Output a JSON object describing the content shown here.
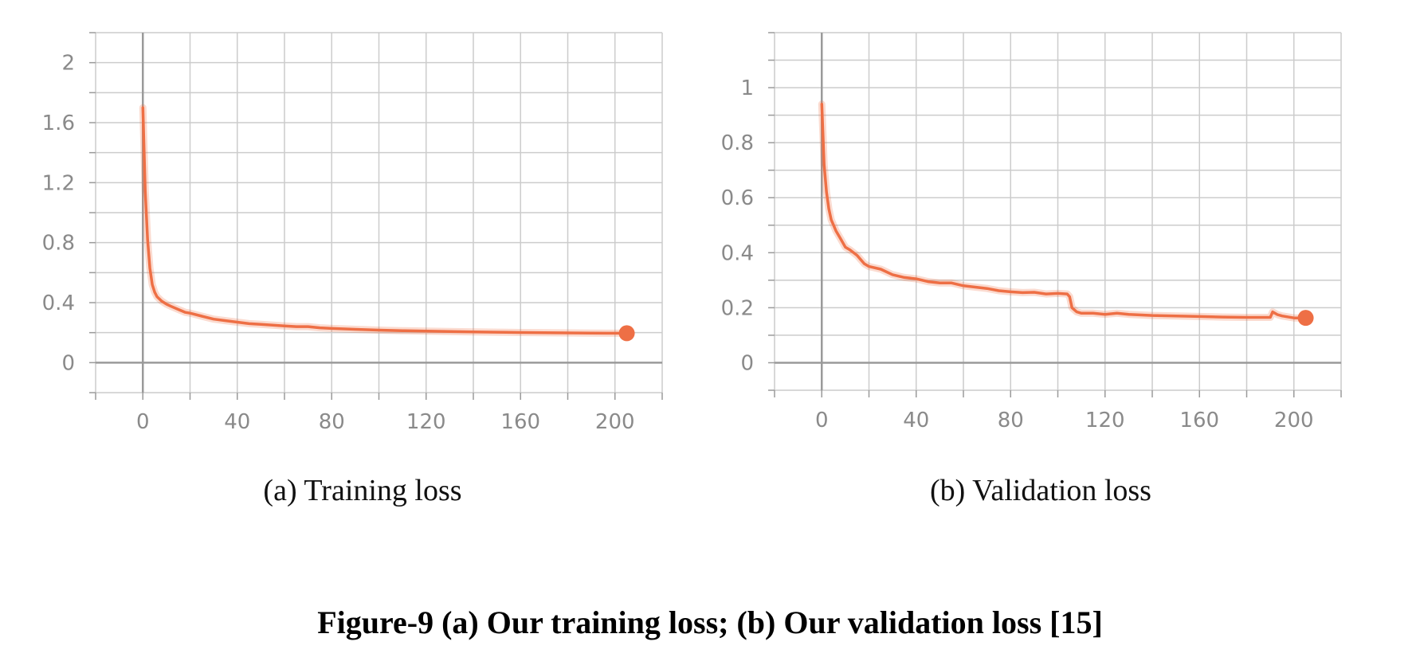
{
  "figure_caption": "Figure-9 (a) Our training loss; (b) Our validation loss [15]",
  "colors": {
    "line": "#ee6f45",
    "grid": "#cccccc",
    "axis": "#9a9a9a",
    "tick_text": "#8a8a8a"
  },
  "chart_data": [
    {
      "type": "line",
      "caption": "(a) Training loss",
      "title": "",
      "xlabel": "",
      "ylabel": "",
      "xlim": [
        -20,
        220
      ],
      "ylim": [
        -0.2,
        2.2
      ],
      "x_ticks": [
        0,
        40,
        80,
        120,
        160,
        200
      ],
      "x_tick_labels": [
        "0",
        "40",
        "80",
        "120",
        "160",
        "200"
      ],
      "y_ticks": [
        0,
        0.4,
        0.8,
        1.2,
        1.6,
        2
      ],
      "y_tick_labels": [
        "0",
        "0.4",
        "0.8",
        "1.2",
        "1.6",
        "2"
      ],
      "grid": true,
      "series": [
        {
          "name": "training loss",
          "x": [
            0,
            1,
            2,
            3,
            4,
            5,
            6,
            8,
            10,
            12,
            15,
            18,
            20,
            25,
            30,
            35,
            40,
            45,
            50,
            55,
            60,
            65,
            70,
            75,
            80,
            90,
            100,
            110,
            120,
            130,
            140,
            150,
            160,
            170,
            180,
            190,
            200,
            205
          ],
          "y": [
            1.7,
            1.15,
            0.82,
            0.63,
            0.52,
            0.47,
            0.44,
            0.41,
            0.39,
            0.375,
            0.355,
            0.335,
            0.33,
            0.31,
            0.29,
            0.28,
            0.27,
            0.26,
            0.255,
            0.25,
            0.245,
            0.24,
            0.24,
            0.232,
            0.228,
            0.222,
            0.217,
            0.213,
            0.21,
            0.207,
            0.205,
            0.203,
            0.201,
            0.2,
            0.198,
            0.197,
            0.196,
            0.196
          ]
        }
      ],
      "end_marker": {
        "x": 205,
        "y": 0.196
      }
    },
    {
      "type": "line",
      "caption": "(b) Validation loss",
      "title": "",
      "xlabel": "",
      "ylabel": "",
      "xlim": [
        -20,
        220
      ],
      "ylim": [
        -0.1,
        1.2
      ],
      "x_ticks": [
        0,
        40,
        80,
        120,
        160,
        200
      ],
      "x_tick_labels": [
        "0",
        "40",
        "80",
        "120",
        "160",
        "200"
      ],
      "y_ticks": [
        0,
        0.2,
        0.4,
        0.6,
        0.8,
        1
      ],
      "y_tick_labels": [
        "0",
        "0.2",
        "0.4",
        "0.6",
        "0.8",
        "1"
      ],
      "grid": true,
      "series": [
        {
          "name": "validation loss",
          "x": [
            0,
            1,
            2,
            3,
            4,
            5,
            6,
            8,
            10,
            12,
            15,
            18,
            20,
            25,
            30,
            35,
            40,
            45,
            50,
            55,
            60,
            65,
            70,
            75,
            80,
            85,
            90,
            95,
            100,
            104,
            105,
            106,
            108,
            110,
            115,
            120,
            125,
            130,
            140,
            150,
            160,
            170,
            180,
            190,
            191,
            193,
            195,
            200,
            205
          ],
          "y": [
            0.94,
            0.72,
            0.62,
            0.56,
            0.52,
            0.5,
            0.48,
            0.45,
            0.42,
            0.41,
            0.39,
            0.36,
            0.35,
            0.34,
            0.32,
            0.31,
            0.305,
            0.295,
            0.29,
            0.29,
            0.28,
            0.275,
            0.27,
            0.262,
            0.258,
            0.255,
            0.256,
            0.25,
            0.252,
            0.25,
            0.24,
            0.2,
            0.185,
            0.18,
            0.18,
            0.176,
            0.18,
            0.176,
            0.172,
            0.17,
            0.168,
            0.166,
            0.165,
            0.165,
            0.185,
            0.175,
            0.17,
            0.163,
            0.163
          ]
        }
      ],
      "end_marker": {
        "x": 205,
        "y": 0.163
      }
    }
  ]
}
